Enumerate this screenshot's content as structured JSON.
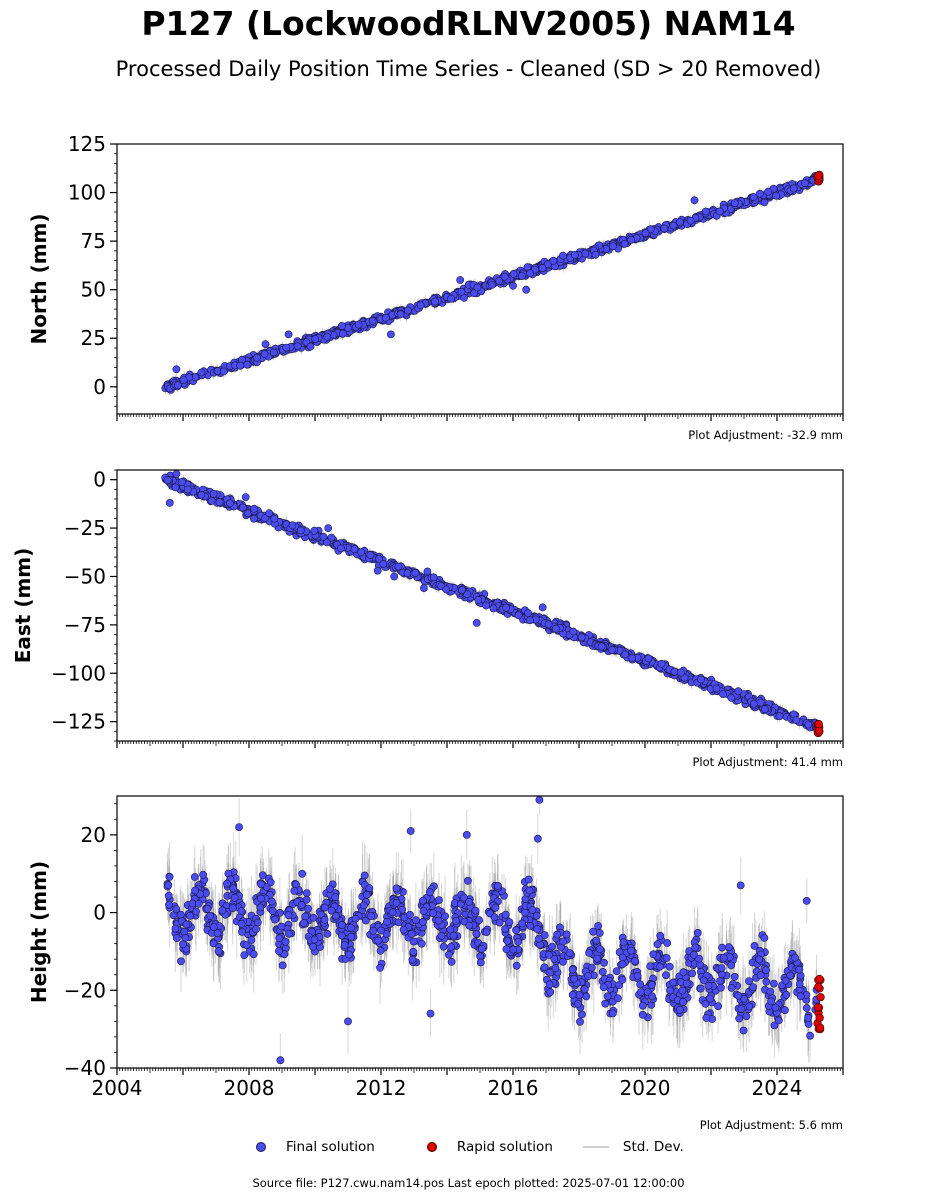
{
  "title": "P127 (LockwoodRLNV2005) NAM14",
  "subtitle": "Processed Daily Position Time Series - Cleaned (SD > 20 Removed)",
  "colors": {
    "final": "#4b4bf2",
    "rapid": "#e00000",
    "std": "#bdbdbd",
    "edge": "#1a1a40"
  },
  "legend": {
    "final": "Final solution",
    "rapid": "Rapid solution",
    "std": "Std. Dev."
  },
  "footer": "Source file: P127.cwu.nam14.pos  Last epoch plotted: 2025-07-01 12:00:00",
  "chart_data": [
    {
      "type": "scatter",
      "ylabel": "North (mm)",
      "adjustment": "Plot Adjustment: -32.9 mm",
      "xlim": [
        2004,
        2026
      ],
      "ylim": [
        -14,
        125
      ],
      "yticks": [
        0,
        25,
        50,
        75,
        100,
        125
      ],
      "xticks": [],
      "trend": [
        [
          2005.5,
          0
        ],
        [
          2025.3,
          107
        ]
      ],
      "noise": 1.6,
      "seasonal": 0,
      "final_range": [
        2005.45,
        2025.2
      ],
      "rapid": {
        "x": [
          2025.22,
          2025.3
        ],
        "y": [
          105.5,
          109.5
        ]
      },
      "outliers": [
        [
          2005.8,
          9
        ],
        [
          2008.5,
          22
        ],
        [
          2009.2,
          27
        ],
        [
          2012.3,
          27
        ],
        [
          2014.4,
          55
        ],
        [
          2016.0,
          52
        ],
        [
          2016.4,
          50
        ],
        [
          2018.5,
          68
        ],
        [
          2021.5,
          96
        ]
      ]
    },
    {
      "type": "scatter",
      "ylabel": "East (mm)",
      "adjustment": "Plot Adjustment: 41.4 mm",
      "xlim": [
        2004,
        2026
      ],
      "ylim": [
        -135,
        5
      ],
      "yticks": [
        -125,
        -100,
        -75,
        -50,
        -25,
        0
      ],
      "xticks": [],
      "trend": [
        [
          2005.5,
          0
        ],
        [
          2025.3,
          -128
        ]
      ],
      "noise": 1.8,
      "seasonal": 0,
      "final_range": [
        2005.45,
        2025.2
      ],
      "rapid": {
        "x": [
          2025.22,
          2025.3
        ],
        "y": [
          -131,
          -126
        ]
      },
      "outliers": [
        [
          2005.6,
          -12
        ],
        [
          2005.8,
          3
        ],
        [
          2007.9,
          -9
        ],
        [
          2010.4,
          -25
        ],
        [
          2011.9,
          -47
        ],
        [
          2012.4,
          -50
        ],
        [
          2013.3,
          -56
        ],
        [
          2014.9,
          -74
        ],
        [
          2016.9,
          -66
        ],
        [
          2017.3,
          -77
        ]
      ]
    },
    {
      "type": "scatter",
      "ylabel": "Height (mm)",
      "adjustment": "Plot Adjustment: 5.6 mm",
      "xlim": [
        2004,
        2026
      ],
      "ylim": [
        -40,
        30
      ],
      "yticks": [
        -40,
        -20,
        0,
        20
      ],
      "xticks": [
        2004,
        2008,
        2012,
        2016,
        2020,
        2024
      ],
      "trend": [
        [
          2005.5,
          0
        ],
        [
          2016.8,
          -3
        ],
        [
          2017.3,
          -14
        ],
        [
          2025.3,
          -20
        ]
      ],
      "noise": 4.2,
      "seasonal": 6,
      "final_range": [
        2005.45,
        2025.2
      ],
      "rapid": {
        "x": [
          2025.22,
          2025.32
        ],
        "y": [
          -32,
          -15
        ]
      },
      "outliers": [
        [
          2008.95,
          -38
        ],
        [
          2016.8,
          29
        ],
        [
          2016.75,
          19
        ],
        [
          2012.9,
          21
        ],
        [
          2007.7,
          22
        ],
        [
          2014.6,
          20
        ],
        [
          2024.9,
          3
        ],
        [
          2022.9,
          7
        ],
        [
          2011.0,
          -28
        ],
        [
          2013.5,
          -26
        ]
      ]
    }
  ]
}
